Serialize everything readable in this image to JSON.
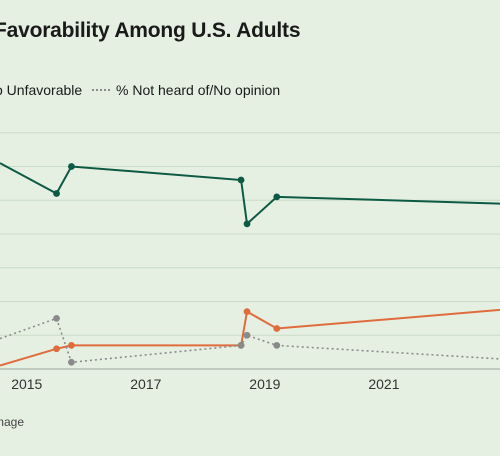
{
  "page": {
    "title": "Favorability Among U.S. Adults",
    "footer": "mage"
  },
  "legend": [
    {
      "label": "o Unfavorable",
      "style": "solid",
      "color": "#e06c3d"
    },
    {
      "label": "% Not heard of/No opinion",
      "style": "dotted",
      "color": "#8a8a8a"
    }
  ],
  "chart_data": {
    "type": "line",
    "title": "Favorability Among U.S. Adults",
    "xlabel": "",
    "ylabel": "",
    "x_ticks": [
      "2015",
      "2017",
      "2019",
      "2021"
    ],
    "xlim": [
      2014.55,
      2022.95
    ],
    "ylim": [
      0,
      80
    ],
    "grid": true,
    "y_gridlines": [
      10,
      20,
      30,
      40,
      50,
      60,
      70
    ],
    "series": [
      {
        "name": "",
        "color": "#0d5a44",
        "style": "solid",
        "markers": true,
        "points": [
          [
            2014.55,
            61
          ],
          [
            2015.5,
            52
          ],
          [
            2015.75,
            60
          ],
          [
            2018.6,
            56
          ],
          [
            2018.7,
            43
          ],
          [
            2019.2,
            51
          ],
          [
            2022.95,
            49
          ]
        ]
      },
      {
        "name": "Unfavorable",
        "color": "#e06c3d",
        "style": "solid",
        "markers": true,
        "points": [
          [
            2014.55,
            1
          ],
          [
            2015.5,
            6
          ],
          [
            2015.75,
            7
          ],
          [
            2018.6,
            7
          ],
          [
            2018.7,
            17
          ],
          [
            2019.2,
            12
          ],
          [
            2022.95,
            17.5
          ]
        ]
      },
      {
        "name": "Not heard of/No opinion",
        "color": "#8a8a8a",
        "style": "dotted",
        "markers": true,
        "points": [
          [
            2014.55,
            9
          ],
          [
            2015.5,
            15
          ],
          [
            2015.75,
            2
          ],
          [
            2018.6,
            7
          ],
          [
            2018.7,
            10
          ],
          [
            2019.2,
            7
          ],
          [
            2022.95,
            3
          ]
        ]
      }
    ]
  }
}
